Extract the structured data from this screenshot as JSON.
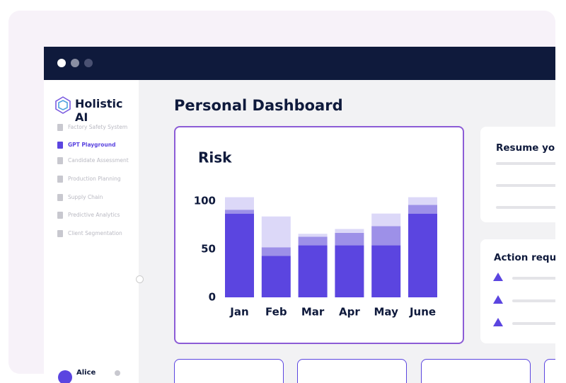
{
  "sidebar": {
    "brand": "Holistic AI",
    "items": [
      "Factory Safety System",
      "GPT Playground",
      "Candidate Assessment",
      "Production Planning",
      "Supply Chain",
      "Predictive Analytics",
      "Client Segmentation"
    ],
    "active": 1,
    "user": "Alice"
  },
  "main": {
    "title": "Personal Dashboard",
    "resume_title": "Resume you",
    "action_title": "Action requi"
  },
  "chart_data": {
    "type": "bar",
    "stacked": true,
    "title": "Risk",
    "categories": [
      "Jan",
      "Feb",
      "Mar",
      "Apr",
      "May",
      "June"
    ],
    "series": [
      {
        "color": "#5b45e0",
        "values": [
          87,
          43,
          54,
          54,
          54,
          87
        ]
      },
      {
        "color": "#9d90e8",
        "values": [
          4,
          9,
          9,
          13,
          20,
          9
        ]
      },
      {
        "color": "#dcd8f8",
        "values": [
          13,
          32,
          3,
          4,
          13,
          8
        ]
      }
    ],
    "ylim": [
      0,
      105
    ],
    "yticks": [
      0,
      50,
      100
    ]
  }
}
